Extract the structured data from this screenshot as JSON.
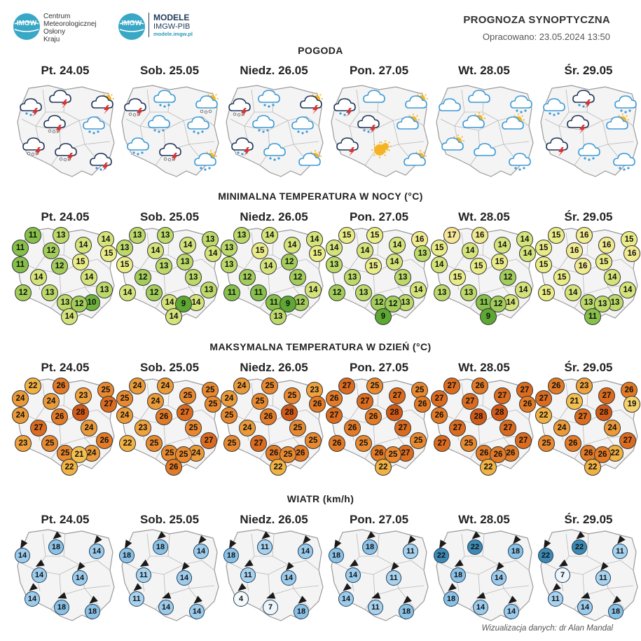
{
  "header": {
    "logo1_name": "IMGW",
    "logo1_lines": [
      "Centrum",
      "Meteorologicznej",
      "Osłony",
      "Kraju"
    ],
    "logo2_name": "IMGW",
    "logo2_title": "MODELE",
    "logo2_sub": "IMGW-PIB",
    "logo2_url": "modele.imgw.pl",
    "title": "PROGNOZA SYNOPTYCZNA",
    "issued": "Opracowano: 23.05.2024 13:50"
  },
  "sections": {
    "weather": "POGODA",
    "tmin": "MINIMALNA TEMPERATURA W NOCY (°C)",
    "tmax": "MAKSYMALNA TEMPERATURA W DZIEŃ (°C)",
    "wind": "WIATR (km/h)"
  },
  "days": [
    "Pt. 24.05",
    "Sob. 25.05",
    "Niedz. 26.05",
    "Pon. 27.05",
    "Wt. 28.05",
    "Śr. 29.05"
  ],
  "weather_icons": [
    [
      "storm-rain",
      "storm-cloud",
      "sun-storm",
      "storm-hail",
      "cloud-rain",
      "storm-hail",
      "storm-hail",
      "cloud-storm-rain"
    ],
    [
      "storm-hail",
      "cloud-rain",
      "sun-hail",
      "cloud-rain",
      "cloud-rain",
      "cloud-rain",
      "storm-hail",
      "sun-rain"
    ],
    [
      "storm-hail",
      "cloud-rain",
      "sun-storm",
      "cloud-rain",
      "cloud-rain",
      "storm-rain",
      "cloud-rain",
      "sun-cloud"
    ],
    [
      "storm-rain",
      "cloud",
      "sun-cloud",
      "storm-rain",
      "sun-cloud",
      "storm-cloud",
      "sun",
      "sun-cloud"
    ],
    [
      "cloud",
      "cloud",
      "cloud-rain",
      "sun-cloud",
      "sun-cloud",
      "sun-cloud",
      "cloud",
      "cloud-rain"
    ],
    [
      "cloud-rain",
      "storm-rain",
      "cloud-rain",
      "storm-cloud",
      "sun-cloud",
      "storm-cloud",
      "cloud-rain",
      "cloud-rain"
    ]
  ],
  "tmin": [
    [
      11,
      13,
      14,
      14,
      15,
      11,
      12,
      15,
      11,
      12,
      14,
      14,
      12,
      13,
      13,
      10,
      13,
      12,
      14
    ],
    [
      13,
      13,
      14,
      13,
      14,
      13,
      14,
      13,
      15,
      13,
      12,
      13,
      14,
      12,
      13,
      14,
      14,
      9,
      14
    ],
    [
      13,
      14,
      14,
      14,
      15,
      13,
      15,
      12,
      13,
      14,
      12,
      12,
      11,
      11,
      14,
      12,
      11,
      9,
      13
    ],
    [
      15,
      15,
      14,
      16,
      13,
      14,
      14,
      14,
      13,
      15,
      13,
      13,
      12,
      13,
      14,
      13,
      12,
      12,
      9
    ],
    [
      17,
      16,
      14,
      14,
      14,
      15,
      14,
      15,
      14,
      15,
      15,
      12,
      13,
      13,
      14,
      14,
      11,
      12,
      9
    ],
    [
      15,
      16,
      16,
      15,
      16,
      15,
      16,
      15,
      15,
      16,
      15,
      14,
      15,
      14,
      14,
      13,
      13,
      13,
      11
    ]
  ],
  "tmax": [
    [
      22,
      26,
      23,
      25,
      27,
      24,
      24,
      28,
      24,
      26,
      27,
      24,
      23,
      25,
      26,
      24,
      25,
      21,
      22
    ],
    [
      24,
      24,
      25,
      25,
      25,
      25,
      24,
      27,
      24,
      26,
      23,
      25,
      22,
      25,
      27,
      24,
      25,
      25,
      26
    ],
    [
      24,
      25,
      25,
      23,
      26,
      24,
      25,
      28,
      25,
      26,
      24,
      25,
      25,
      27,
      25,
      26,
      26,
      25,
      22
    ],
    [
      27,
      25,
      27,
      25,
      26,
      26,
      27,
      28,
      27,
      26,
      26,
      27,
      26,
      25,
      25,
      27,
      26,
      25,
      22
    ],
    [
      27,
      26,
      27,
      27,
      26,
      27,
      27,
      28,
      26,
      28,
      27,
      27,
      27,
      25,
      27,
      26,
      26,
      26,
      22
    ],
    [
      26,
      23,
      27,
      26,
      19,
      27,
      21,
      28,
      22,
      27,
      24,
      24,
      25,
      26,
      27,
      22,
      26,
      26,
      22
    ]
  ],
  "wind": [
    [
      14,
      18,
      14,
      14,
      14,
      14,
      18,
      18
    ],
    [
      18,
      18,
      14,
      11,
      14,
      11,
      14,
      14
    ],
    [
      18,
      11,
      14,
      11,
      14,
      4,
      7,
      18
    ],
    [
      18,
      18,
      11,
      14,
      11,
      14,
      11,
      18
    ],
    [
      22,
      22,
      18,
      18,
      14,
      18,
      14,
      14
    ],
    [
      22,
      22,
      11,
      7,
      11,
      11,
      14,
      18
    ]
  ],
  "colors": {
    "tmin_scale": {
      "9": "#5da832",
      "10": "#6db33a",
      "11": "#86c04a",
      "12": "#a2cd5a",
      "13": "#bcd96a",
      "14": "#d5e47a",
      "15": "#eaec88",
      "16": "#f0ea90",
      "17": "#f6e698"
    },
    "tmax_scale": {
      "19": "#f6d36e",
      "21": "#f3bf4f",
      "22": "#f1b244",
      "23": "#eea13c",
      "24": "#eb9a38",
      "25": "#e88930",
      "26": "#e27a26",
      "27": "#db6c1f",
      "28": "#d25a17"
    },
    "wind_scale": {
      "4": "#f4f9fc",
      "7": "#eef6fb",
      "11": "#a9d2ee",
      "14": "#9dcbeb",
      "18": "#8cc1e6",
      "22": "#3d89b3"
    }
  },
  "footer": "Wizualizacja danych: dr Alan Mandal"
}
